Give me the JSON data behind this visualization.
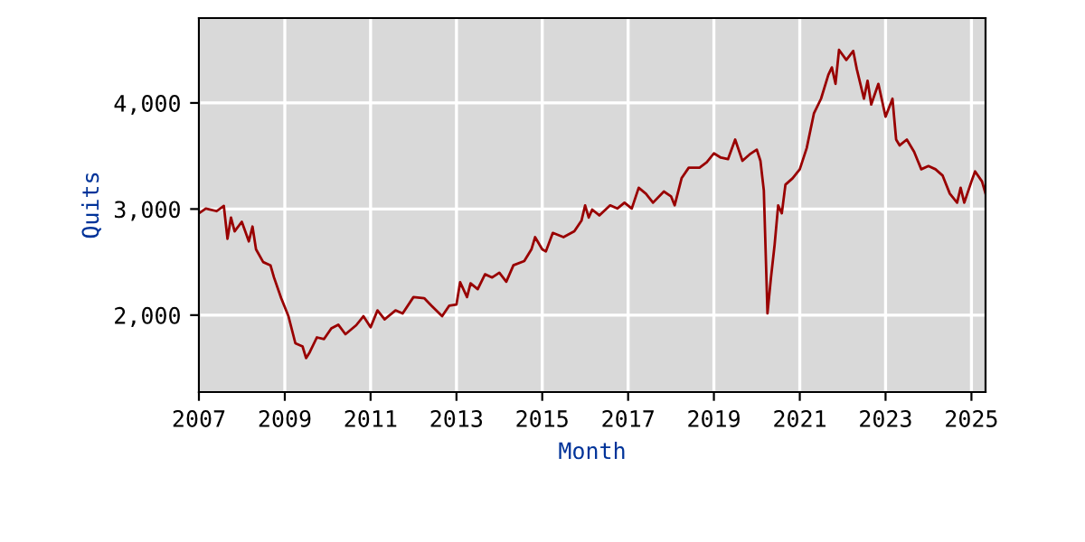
{
  "chart_data": {
    "type": "line",
    "xlabel": "Month",
    "ylabel": "Quits",
    "grid": true,
    "marker": "none",
    "line_style": "solid",
    "xlim": [
      "2007",
      "2025-05"
    ],
    "xticks": [
      "2007",
      "2009",
      "2011",
      "2013",
      "2015",
      "2017",
      "2019",
      "2021",
      "2023",
      "2025"
    ],
    "ylim": [
      1275,
      4800
    ],
    "yticks": [
      {
        "value": 2000,
        "label": "2,000"
      },
      {
        "value": 3000,
        "label": "3,000"
      },
      {
        "value": 4000,
        "label": "4,000"
      }
    ],
    "x": [
      "2007-01",
      "2007-03",
      "2007-06",
      "2007-08",
      "2007-09",
      "2007-10",
      "2007-11",
      "2008-01",
      "2008-03",
      "2008-04",
      "2008-05",
      "2008-07",
      "2008-09",
      "2008-10",
      "2008-12",
      "2009-02",
      "2009-04",
      "2009-06",
      "2009-07",
      "2009-08",
      "2009-10",
      "2009-12",
      "2010-02",
      "2010-04",
      "2010-06",
      "2010-09",
      "2010-11",
      "2011-01",
      "2011-03",
      "2011-05",
      "2011-08",
      "2011-10",
      "2012-01",
      "2012-04",
      "2012-06",
      "2012-09",
      "2012-11",
      "2013-01",
      "2013-02",
      "2013-04",
      "2013-05",
      "2013-07",
      "2013-09",
      "2013-11",
      "2014-01",
      "2014-03",
      "2014-05",
      "2014-08",
      "2014-10",
      "2014-11",
      "2015-01",
      "2015-02",
      "2015-04",
      "2015-07",
      "2015-10",
      "2015-12",
      "2016-01",
      "2016-02",
      "2016-03",
      "2016-05",
      "2016-08",
      "2016-10",
      "2016-12",
      "2017-02",
      "2017-04",
      "2017-06",
      "2017-08",
      "2017-11",
      "2018-01",
      "2018-02",
      "2018-04",
      "2018-06",
      "2018-09",
      "2018-11",
      "2019-01",
      "2019-03",
      "2019-05",
      "2019-07",
      "2019-09",
      "2019-11",
      "2020-01",
      "2020-02",
      "2020-03",
      "2020-04",
      "2020-05",
      "2020-06",
      "2020-07",
      "2020-08",
      "2020-09",
      "2020-11",
      "2021-01",
      "2021-03",
      "2021-05",
      "2021-07",
      "2021-09",
      "2021-10",
      "2021-11",
      "2021-12",
      "2022-02",
      "2022-04",
      "2022-05",
      "2022-07",
      "2022-08",
      "2022-09",
      "2022-11",
      "2023-01",
      "2023-03",
      "2023-04",
      "2023-05",
      "2023-07",
      "2023-09",
      "2023-11",
      "2024-01",
      "2024-03",
      "2024-05",
      "2024-07",
      "2024-09",
      "2024-10",
      "2024-11",
      "2025-01",
      "2025-02",
      "2025-04",
      "2025-05"
    ],
    "series": [
      {
        "color": "#990000",
        "values": [
          2960,
          3005,
          2980,
          3030,
          2720,
          2920,
          2790,
          2880,
          2695,
          2835,
          2620,
          2500,
          2470,
          2355,
          2160,
          1990,
          1735,
          1705,
          1595,
          1650,
          1790,
          1775,
          1875,
          1910,
          1820,
          1905,
          1990,
          1885,
          2045,
          1960,
          2045,
          2015,
          2170,
          2160,
          2090,
          1990,
          2090,
          2100,
          2310,
          2170,
          2300,
          2245,
          2385,
          2355,
          2400,
          2315,
          2470,
          2510,
          2620,
          2735,
          2620,
          2600,
          2775,
          2735,
          2790,
          2890,
          3035,
          2920,
          2995,
          2940,
          3035,
          3005,
          3060,
          3005,
          3200,
          3145,
          3060,
          3165,
          3120,
          3035,
          3290,
          3390,
          3390,
          3440,
          3525,
          3485,
          3470,
          3655,
          3455,
          3515,
          3560,
          3455,
          3175,
          2017,
          2355,
          2665,
          3035,
          2960,
          3230,
          3290,
          3375,
          3575,
          3900,
          4040,
          4265,
          4335,
          4180,
          4500,
          4405,
          4490,
          4320,
          4040,
          4210,
          3985,
          4180,
          3870,
          4040,
          3655,
          3600,
          3655,
          3540,
          3375,
          3405,
          3375,
          3315,
          3145,
          3060,
          3200,
          3060,
          3260,
          3355,
          3260,
          3145
        ]
      }
    ]
  }
}
